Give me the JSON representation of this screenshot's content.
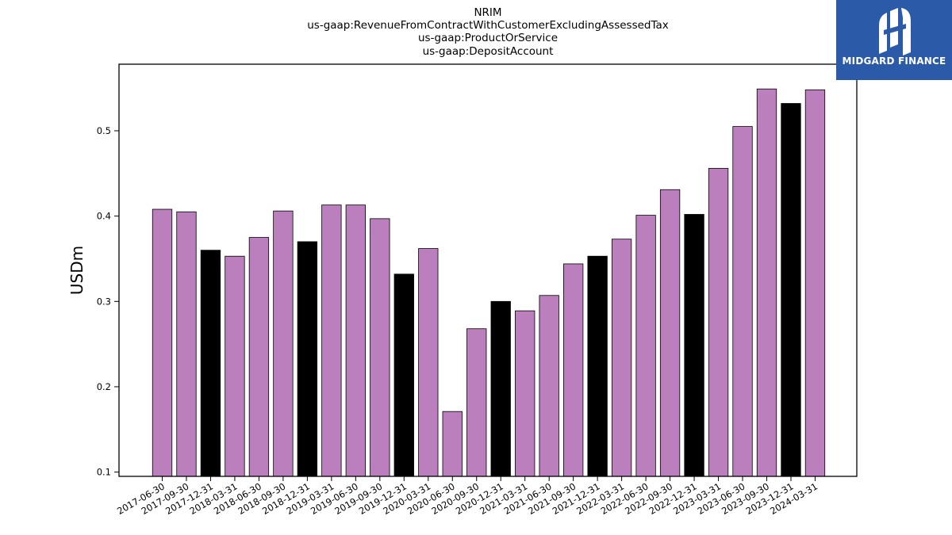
{
  "title_lines": [
    "NRIM",
    "us-gaap:RevenueFromContractWithCustomerExcludingAssessedTax",
    "us-gaap:ProductOrService",
    "us-gaap:DepositAccount"
  ],
  "logo": {
    "text": "MIDGARD FINANCE",
    "bg_color": "#2b5aa8",
    "icon": "midgard-m-logo-icon"
  },
  "colors": {
    "quarter": "#bb7fbd",
    "year_end": "#000000",
    "edge": "#000000"
  },
  "chart_data": {
    "type": "bar",
    "ylabel": "USDm",
    "xlabel": "",
    "ylim": [
      0.095,
      0.578
    ],
    "yticks": [
      0.1,
      0.2,
      0.3,
      0.4,
      0.5
    ],
    "grid": false,
    "categories": [
      "2017-06-30",
      "2017-09-30",
      "2017-12-31",
      "2018-03-31",
      "2018-06-30",
      "2018-09-30",
      "2018-12-31",
      "2019-03-31",
      "2019-06-30",
      "2019-09-30",
      "2019-12-31",
      "2020-03-31",
      "2020-06-30",
      "2020-09-30",
      "2020-12-31",
      "2021-03-31",
      "2021-06-30",
      "2021-09-30",
      "2021-12-31",
      "2022-03-31",
      "2022-06-30",
      "2022-09-30",
      "2022-12-31",
      "2023-03-31",
      "2023-06-30",
      "2023-09-30",
      "2023-12-31",
      "2024-03-31"
    ],
    "values": [
      0.408,
      0.405,
      0.36,
      0.353,
      0.375,
      0.406,
      0.37,
      0.413,
      0.413,
      0.397,
      0.332,
      0.362,
      0.171,
      0.268,
      0.3,
      0.289,
      0.307,
      0.344,
      0.353,
      0.373,
      0.401,
      0.431,
      0.402,
      0.456,
      0.505,
      0.549,
      0.532,
      0.548
    ],
    "year_end": [
      false,
      false,
      true,
      false,
      false,
      false,
      true,
      false,
      false,
      false,
      true,
      false,
      false,
      false,
      true,
      false,
      false,
      false,
      true,
      false,
      false,
      false,
      true,
      false,
      false,
      false,
      true,
      false
    ]
  }
}
